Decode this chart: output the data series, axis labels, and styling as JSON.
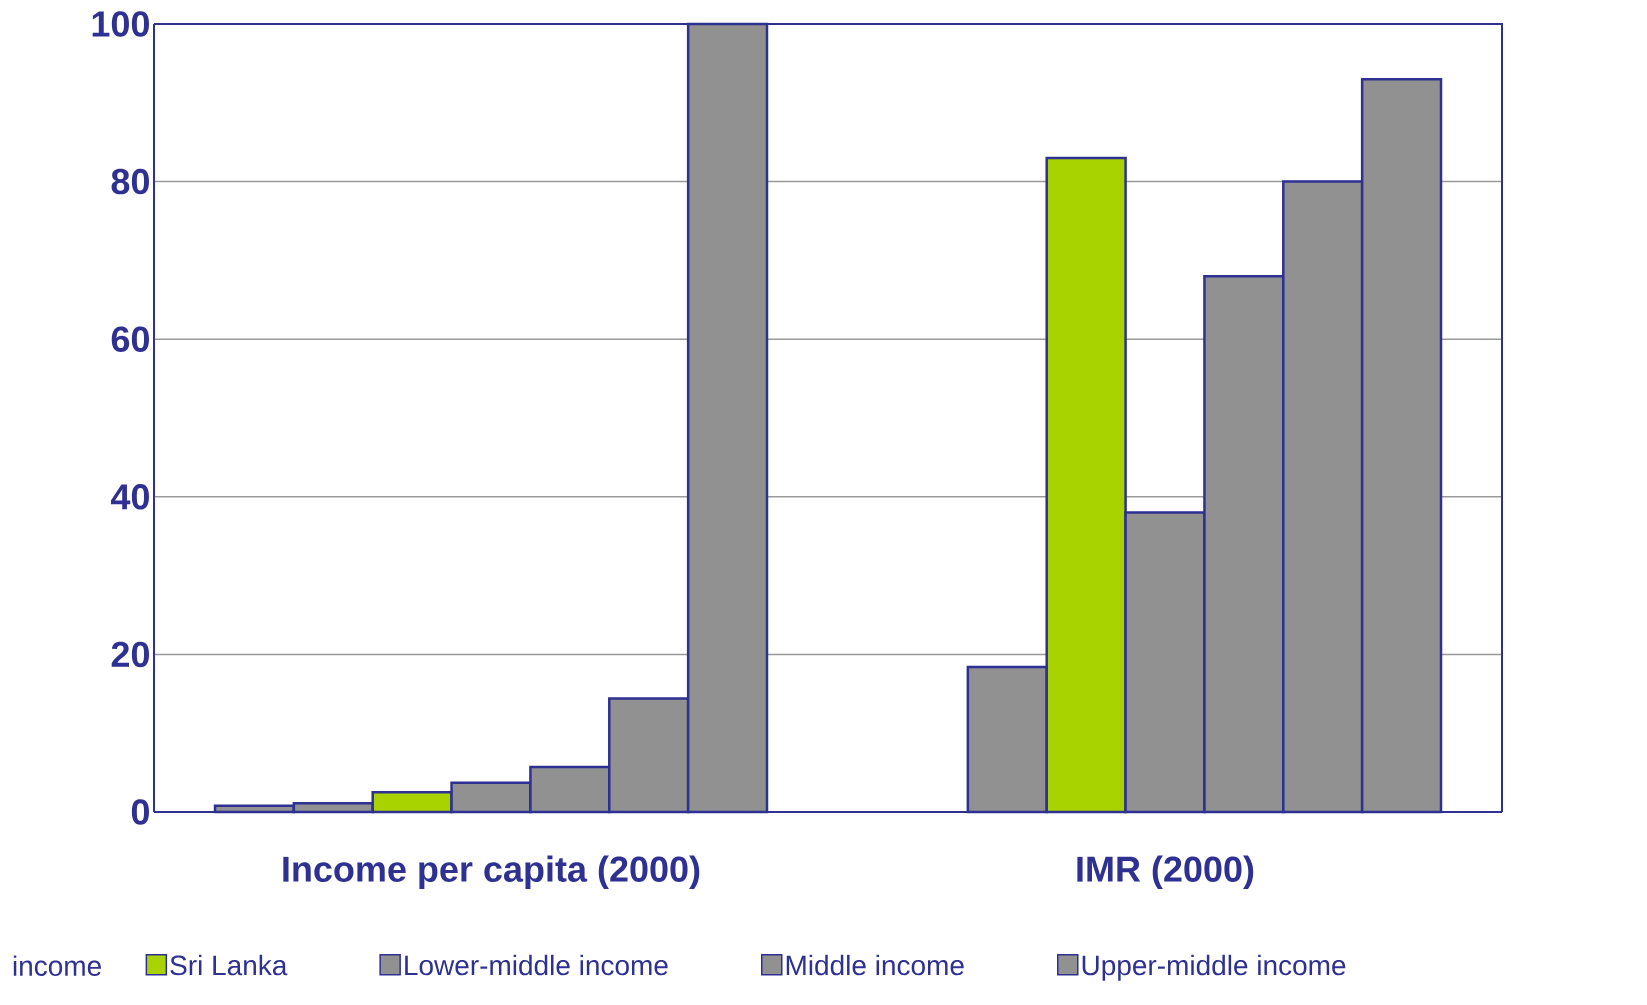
{
  "chart_data": {
    "type": "bar",
    "categories": [
      "Income per capita (2000)",
      "IMR (2000)"
    ],
    "series": [
      {
        "color": "#919191",
        "values": [
          0.8,
          null
        ]
      },
      {
        "color": "#919191",
        "values": [
          1.1,
          18.4
        ]
      },
      {
        "name": "Sri Lanka",
        "color": "#a8d300",
        "values": [
          2.5,
          83
        ]
      },
      {
        "name": "Lower-middle income",
        "color": "#919191",
        "values": [
          3.7,
          38
        ]
      },
      {
        "name": "Middle income",
        "color": "#919191",
        "values": [
          5.7,
          68
        ]
      },
      {
        "name": "Upper-middle income",
        "color": "#919191",
        "values": [
          14.4,
          80
        ]
      },
      {
        "color": "#919191",
        "values": [
          100,
          93
        ]
      }
    ],
    "ylim": [
      0,
      100
    ],
    "yticks": [
      0,
      20,
      40,
      60,
      80,
      100
    ],
    "grid": "y",
    "legend": "bottom",
    "annotations": [
      "income"
    ]
  }
}
